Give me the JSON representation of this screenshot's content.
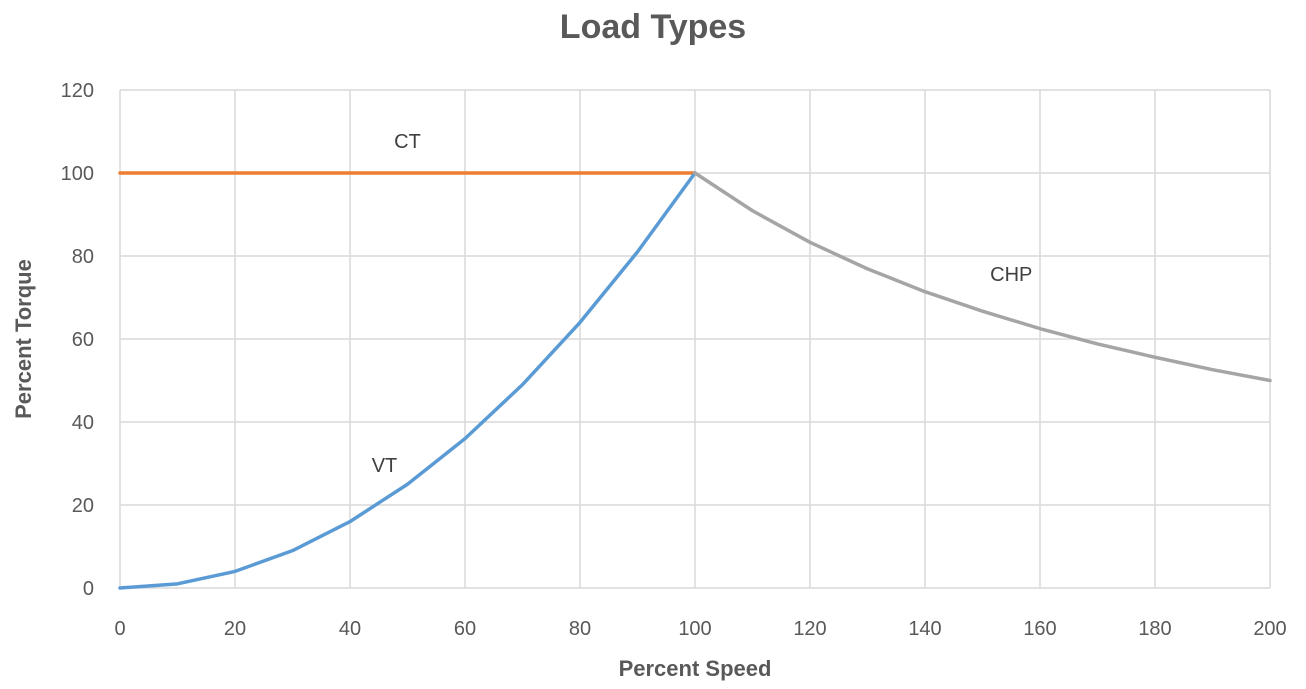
{
  "chart_data": {
    "type": "line",
    "title": "Load Types",
    "xlabel": "Percent Speed",
    "ylabel": "Percent Torque",
    "xlim": [
      0,
      200
    ],
    "ylim": [
      0,
      120
    ],
    "x_ticks": [
      0,
      20,
      40,
      60,
      80,
      100,
      120,
      140,
      160,
      180,
      200
    ],
    "y_ticks": [
      0,
      20,
      40,
      60,
      80,
      100,
      120
    ],
    "grid": true,
    "legend": "none",
    "series": [
      {
        "name": "CT",
        "color": "#ed7d31",
        "x": [
          0,
          10,
          20,
          30,
          40,
          50,
          60,
          70,
          80,
          90,
          100
        ],
        "y": [
          100,
          100,
          100,
          100,
          100,
          100,
          100,
          100,
          100,
          100,
          100
        ]
      },
      {
        "name": "VT",
        "color": "#5b9bd5",
        "x": [
          0,
          10,
          20,
          30,
          40,
          50,
          60,
          70,
          80,
          90,
          100
        ],
        "y": [
          0,
          1,
          4,
          9,
          16,
          25,
          36,
          49,
          64,
          81,
          100
        ]
      },
      {
        "name": "CHP",
        "color": "#a5a5a5",
        "x": [
          100,
          110,
          120,
          130,
          140,
          150,
          160,
          170,
          180,
          190,
          200
        ],
        "y": [
          100,
          90.9,
          83.3,
          76.9,
          71.4,
          66.7,
          62.5,
          58.8,
          55.6,
          52.6,
          50
        ]
      }
    ],
    "annotations": [
      {
        "text": "CT",
        "x": 50,
        "y": 106
      },
      {
        "text": "VT",
        "x": 46,
        "y": 28
      },
      {
        "text": "CHP",
        "x": 155,
        "y": 74
      }
    ]
  }
}
